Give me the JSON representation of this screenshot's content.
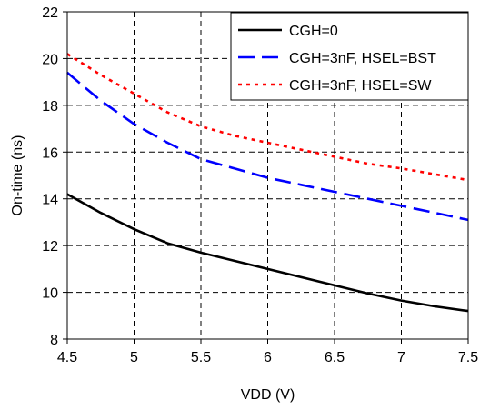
{
  "chart_data": {
    "type": "line",
    "title": "",
    "xlabel": "VDD (V)",
    "ylabel": "On-time (ns)",
    "xlim": [
      4.5,
      7.5
    ],
    "ylim": [
      8,
      22
    ],
    "x_ticks": [
      "4.5",
      "5",
      "5.5",
      "6",
      "6.5",
      "7",
      "7.5"
    ],
    "y_ticks": [
      "8",
      "10",
      "12",
      "14",
      "16",
      "18",
      "20",
      "22"
    ],
    "grid": true,
    "legend_position": "top-right",
    "series": [
      {
        "name": "CGH=0",
        "color": "#000000",
        "dash": "solid",
        "x": [
          4.5,
          4.75,
          5.0,
          5.25,
          5.5,
          5.75,
          6.0,
          6.25,
          6.5,
          6.75,
          7.0,
          7.25,
          7.5
        ],
        "y": [
          14.2,
          13.4,
          12.7,
          12.1,
          11.7,
          11.35,
          11.0,
          10.65,
          10.3,
          9.95,
          9.65,
          9.4,
          9.2
        ]
      },
      {
        "name": "CGH=3nF, HSEL=BST",
        "color": "#0000ff",
        "dash": "long-dash",
        "x": [
          4.5,
          4.75,
          5.0,
          5.25,
          5.5,
          5.75,
          6.0,
          6.25,
          6.5,
          6.75,
          7.0,
          7.25,
          7.5
        ],
        "y": [
          19.4,
          18.2,
          17.2,
          16.4,
          15.7,
          15.3,
          14.9,
          14.6,
          14.3,
          14.0,
          13.7,
          13.4,
          13.1
        ]
      },
      {
        "name": "CGH=3nF, HSEL=SW",
        "color": "#ff0000",
        "dash": "dotted",
        "x": [
          4.5,
          4.75,
          5.0,
          5.25,
          5.5,
          5.75,
          6.0,
          6.25,
          6.5,
          6.75,
          7.0,
          7.25,
          7.5
        ],
        "y": [
          20.2,
          19.3,
          18.5,
          17.7,
          17.1,
          16.7,
          16.4,
          16.1,
          15.8,
          15.5,
          15.3,
          15.05,
          14.8
        ]
      }
    ]
  }
}
